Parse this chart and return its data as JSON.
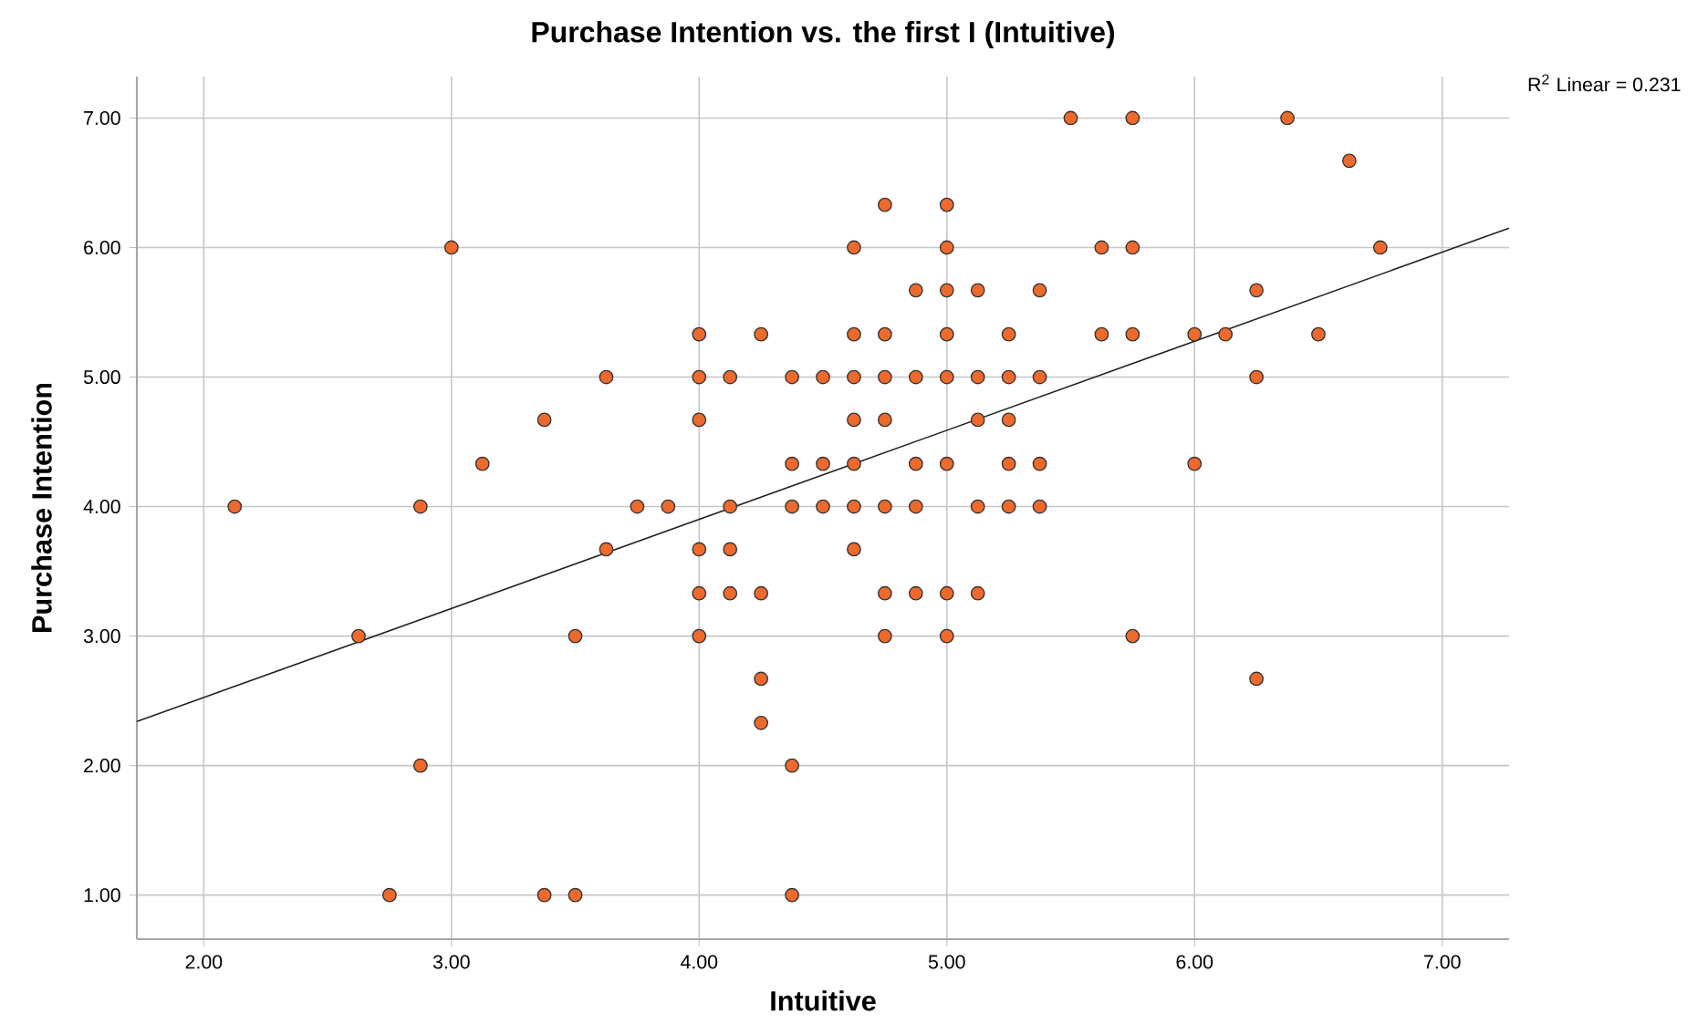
{
  "chart_data": {
    "type": "scatter",
    "title": "Purchase Intention vs. the first I (Intuitive)",
    "xlabel": "Intuitive",
    "ylabel": "Purchase Intention",
    "annotations": [
      "R$^{2}$ Linear = 0.231"
    ],
    "xlim": [
      1.73,
      7.27
    ],
    "ylim": [
      0.66,
      7.32
    ],
    "xticks": [
      {
        "value": 2,
        "label": "2.00"
      },
      {
        "value": 3,
        "label": "3.00"
      },
      {
        "value": 4,
        "label": "4.00"
      },
      {
        "value": 5,
        "label": "5.00"
      },
      {
        "value": 6,
        "label": "6.00"
      },
      {
        "value": 7,
        "label": "7.00"
      }
    ],
    "yticks": [
      {
        "value": 1,
        "label": "1.00"
      },
      {
        "value": 2,
        "label": "2.00"
      },
      {
        "value": 3,
        "label": "3.00"
      },
      {
        "value": 4,
        "label": "4.00"
      },
      {
        "value": 5,
        "label": "5.00"
      },
      {
        "value": 6,
        "label": "6.00"
      },
      {
        "value": 7,
        "label": "7.00"
      }
    ],
    "grid": true,
    "marker": "circle",
    "series": [
      {
        "color": "#ee6a2c",
        "x": [
          5.5,
          5.75,
          6.375,
          6.625,
          4.75,
          5.0,
          3.0,
          4.625,
          5.0,
          5.625,
          5.75,
          6.75,
          4.875,
          5.0,
          5.125,
          5.375,
          6.25,
          4.0,
          4.25,
          4.625,
          4.75,
          5.0,
          5.25,
          5.625,
          5.75,
          6.0,
          6.125,
          6.5,
          3.625,
          4.0,
          4.125,
          4.375,
          4.5,
          4.625,
          4.75,
          4.875,
          5.0,
          5.125,
          5.25,
          5.375,
          6.25,
          3.375,
          4.0,
          4.625,
          4.75,
          5.125,
          5.25,
          3.125,
          4.375,
          4.5,
          4.625,
          4.875,
          5.0,
          5.25,
          5.375,
          6.0,
          2.125,
          2.875,
          3.75,
          3.875,
          4.125,
          4.375,
          4.5,
          4.625,
          4.75,
          4.875,
          5.125,
          5.25,
          5.375,
          3.625,
          4.0,
          4.125,
          4.625,
          4.0,
          4.125,
          4.25,
          4.75,
          4.875,
          5.0,
          5.125,
          2.625,
          3.5,
          4.0,
          4.75,
          5.0,
          5.75,
          4.25,
          6.25,
          4.25,
          2.875,
          4.375,
          2.75,
          3.375,
          3.5,
          4.375
        ],
        "values": [
          7,
          7,
          7,
          6.67,
          6.33,
          6.33,
          6,
          6,
          6,
          6,
          6,
          6,
          5.67,
          5.67,
          5.67,
          5.67,
          5.67,
          5.33,
          5.33,
          5.33,
          5.33,
          5.33,
          5.33,
          5.33,
          5.33,
          5.33,
          5.33,
          5.33,
          5,
          5,
          5,
          5,
          5,
          5,
          5,
          5,
          5,
          5,
          5,
          5,
          5,
          4.67,
          4.67,
          4.67,
          4.67,
          4.67,
          4.67,
          4.33,
          4.33,
          4.33,
          4.33,
          4.33,
          4.33,
          4.33,
          4.33,
          4.33,
          4,
          4,
          4,
          4,
          4,
          4,
          4,
          4,
          4,
          4,
          4,
          4,
          4,
          3.67,
          3.67,
          3.67,
          3.67,
          3.33,
          3.33,
          3.33,
          3.33,
          3.33,
          3.33,
          3.33,
          3,
          3,
          3,
          3,
          3,
          3,
          2.67,
          2.67,
          2.33,
          2,
          2,
          1,
          1,
          1,
          1
        ]
      },
      {
        "type": "line",
        "color": "#222222",
        "marker": "none",
        "x": [
          1.73,
          7.27
        ],
        "values": [
          2.34,
          6.15
        ]
      }
    ]
  }
}
